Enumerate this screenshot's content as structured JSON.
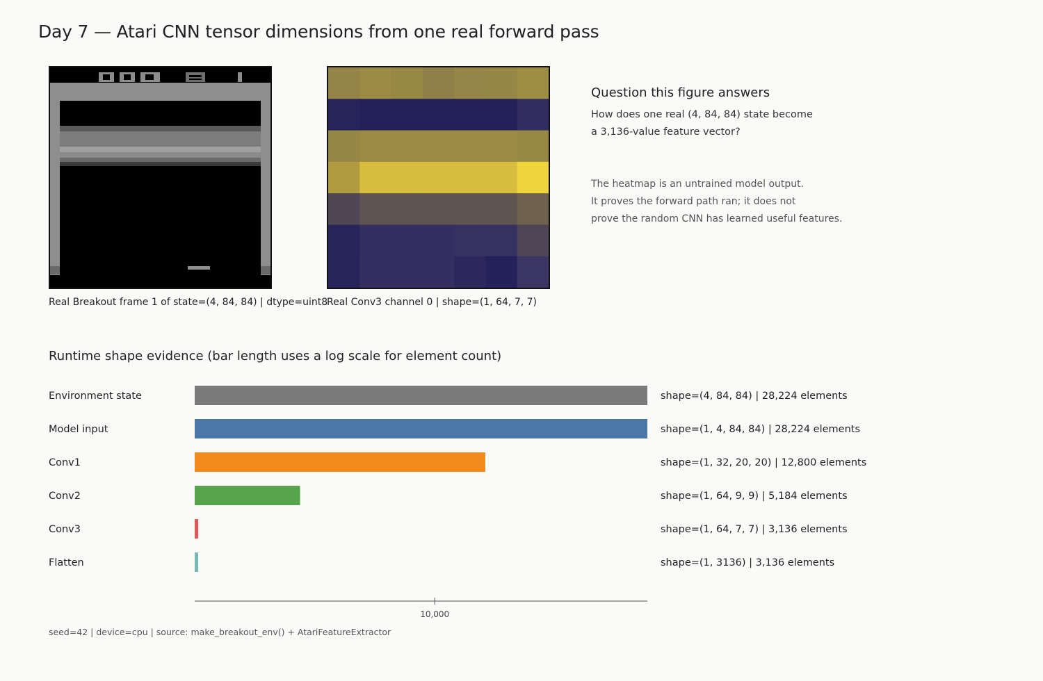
{
  "page": {
    "title": "Day 7 — Atari CNN tensor dimensions from one real forward pass",
    "footer": "seed=42 | device=cpu | source: make_breakout_env() + AtariFeatureExtractor"
  },
  "frame_panel": {
    "caption": "Real Breakout frame 1 of state=(4, 84, 84) | dtype=uint8"
  },
  "heatmap_panel": {
    "caption": "Real Conv3 channel 0 | shape=(1, 64, 7, 7)",
    "colormap": [
      "#24215a",
      "#3a3563",
      "#5a5050",
      "#8c7d4a",
      "#a59440",
      "#d5bc3e",
      "#f0d43c"
    ],
    "grid": [
      [
        0.55,
        0.6,
        0.58,
        0.52,
        0.56,
        0.57,
        0.62
      ],
      [
        0.02,
        0.0,
        0.0,
        0.0,
        0.0,
        0.0,
        0.1
      ],
      [
        0.57,
        0.6,
        0.6,
        0.6,
        0.6,
        0.6,
        0.58
      ],
      [
        0.7,
        0.84,
        0.84,
        0.84,
        0.84,
        0.84,
        1.0
      ],
      [
        0.28,
        0.35,
        0.35,
        0.35,
        0.35,
        0.35,
        0.4
      ],
      [
        0.03,
        0.12,
        0.12,
        0.12,
        0.13,
        0.13,
        0.27
      ],
      [
        0.02,
        0.12,
        0.12,
        0.12,
        0.06,
        0.01,
        0.17
      ]
    ]
  },
  "question": {
    "title": "Question this figure answers",
    "lines": [
      "How does one real (4, 84, 84) state become",
      "a 3,136-value feature vector?"
    ],
    "note_lines": [
      "The heatmap is an untrained model output.",
      "It proves the forward path ran; it does not",
      "prove the random CNN has learned useful features."
    ]
  },
  "chart_data": {
    "type": "bar",
    "orientation": "horizontal",
    "title": "Runtime shape evidence (bar length uses a log scale for element count)",
    "xscale": "log",
    "xlim": [
      3100,
      28224
    ],
    "xticks": [
      10000
    ],
    "xtick_labels": [
      "10,000"
    ],
    "categories": [
      "Environment state",
      "Model input",
      "Conv1",
      "Conv2",
      "Conv3",
      "Flatten"
    ],
    "values": [
      28224,
      28224,
      12800,
      5184,
      3136,
      3136
    ],
    "value_labels": [
      "shape=(4, 84, 84) | 28,224 elements",
      "shape=(1, 4, 84, 84) | 28,224 elements",
      "shape=(1, 32, 20, 20) | 12,800 elements",
      "shape=(1, 64, 9, 9) | 5,184 elements",
      "shape=(1, 64, 7, 7) | 3,136 elements",
      "shape=(1, 3136) | 3,136 elements"
    ],
    "colors": [
      "#7a7a7a",
      "#4a76a8",
      "#f28a1c",
      "#56a54c",
      "#df5858",
      "#77b9b6"
    ]
  }
}
